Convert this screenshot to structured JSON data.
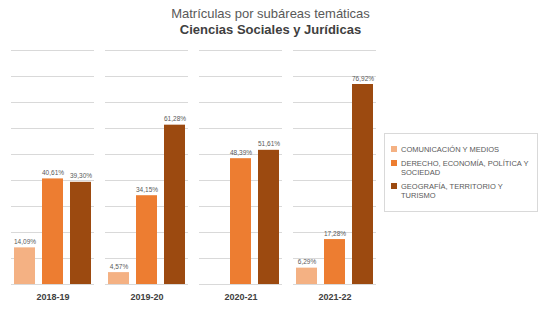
{
  "chart_data": {
    "type": "bar",
    "title": "Matrículas por subáreas temáticas",
    "subtitle": "Ciencias Sociales y Jurídicas",
    "categories": [
      "2018-19",
      "2019-20",
      "2020-21",
      "2021-22"
    ],
    "series": [
      {
        "name": "COMUNICACIÓN Y MEDIOS",
        "color": "#f4b183",
        "values": [
          14.09,
          4.57,
          null,
          6.29
        ],
        "value_labels": [
          "14,09%",
          "4,57%",
          null,
          "6,29%"
        ]
      },
      {
        "name": "DERECHO, ECONOMÍA, POLÍTICA Y SOCIEDAD",
        "color": "#ed7d31",
        "values": [
          40.61,
          34.15,
          48.39,
          17.28
        ],
        "value_labels": [
          "40,61%",
          "34,15%",
          "48,39%",
          "17,28%"
        ]
      },
      {
        "name": "GEOGRAFÍA, TERRITORIO Y TURISMO",
        "color": "#9c4a10",
        "values": [
          39.3,
          61.28,
          51.61,
          76.92
        ],
        "value_labels": [
          "39,30%",
          "61,28%",
          "51,61%",
          "76,92%"
        ]
      }
    ],
    "ylim": [
      0,
      90
    ],
    "yticks": [
      0,
      10,
      20,
      30,
      40,
      50,
      60,
      70,
      80,
      90
    ],
    "grid": true,
    "legend": "right",
    "data_labels": true,
    "tick_labels": "x"
  }
}
